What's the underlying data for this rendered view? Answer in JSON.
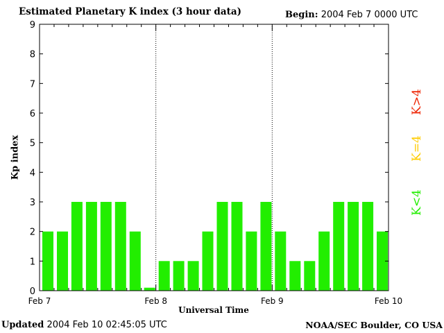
{
  "header": {
    "title": "Estimated Planetary K index (3 hour data)",
    "begin_label": "Begin:",
    "begin_value": "2004 Feb 7 0000 UTC"
  },
  "footer": {
    "updated_label": "Updated",
    "updated_value": "2004 Feb 10 02:45:05 UTC",
    "credit": "NOAA/SEC Boulder, CO USA"
  },
  "legend": [
    {
      "label": "K<4",
      "color": "#22ee00"
    },
    {
      "label": "K=4",
      "color": "#ffcc00"
    },
    {
      "label": "K>4",
      "color": "#ee2200"
    }
  ],
  "chart_data": {
    "type": "bar",
    "title": "Estimated Planetary K index (3 hour data)",
    "xlabel": "Universal Time",
    "ylabel": "Kp index",
    "ylim": [
      0,
      9
    ],
    "yticks": [
      0,
      1,
      2,
      3,
      4,
      5,
      6,
      7,
      8,
      9
    ],
    "xtick_labels": [
      "Feb 7",
      "Feb 8",
      "Feb 9",
      "Feb 10"
    ],
    "interval_hours": 3,
    "categories": [
      "Feb 7 00",
      "Feb 7 03",
      "Feb 7 06",
      "Feb 7 09",
      "Feb 7 12",
      "Feb 7 15",
      "Feb 7 18",
      "Feb 7 21",
      "Feb 8 00",
      "Feb 8 03",
      "Feb 8 06",
      "Feb 8 09",
      "Feb 8 12",
      "Feb 8 15",
      "Feb 8 18",
      "Feb 8 21",
      "Feb 9 00",
      "Feb 9 03",
      "Feb 9 06",
      "Feb 9 09",
      "Feb 9 12",
      "Feb 9 15",
      "Feb 9 18",
      "Feb 9 21"
    ],
    "values": [
      2,
      2,
      3,
      3,
      3,
      3,
      2,
      0.1,
      1,
      1,
      1,
      2,
      3,
      3,
      2,
      3,
      2,
      1,
      1,
      2,
      3,
      3,
      3,
      2
    ],
    "bar_color": "#22ee00",
    "grid": false,
    "day_separators": true
  }
}
